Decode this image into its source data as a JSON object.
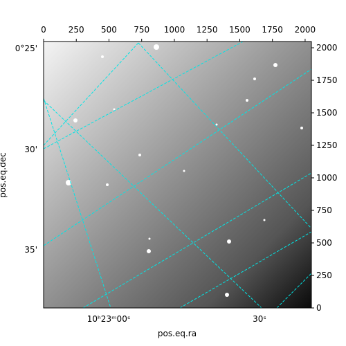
{
  "chart_data": {
    "type": "image",
    "xlabel": "pos.eq.ra",
    "ylabel": "pos.eq.dec",
    "xlim": [
      0,
      2048
    ],
    "xticks": [
      0,
      250,
      500,
      750,
      1000,
      1250,
      1500,
      1750,
      2000
    ],
    "ylim": [
      0,
      2048
    ],
    "yticks": [
      0,
      250,
      500,
      750,
      1000,
      1250,
      1500,
      1750,
      2000
    ],
    "world_xticks": [
      "10ʰ23ᵐ00ˢ",
      "30ˢ"
    ],
    "world_yticks": [
      "0°25'",
      "30'",
      "35'"
    ],
    "grid_color": "#00e5e5"
  }
}
